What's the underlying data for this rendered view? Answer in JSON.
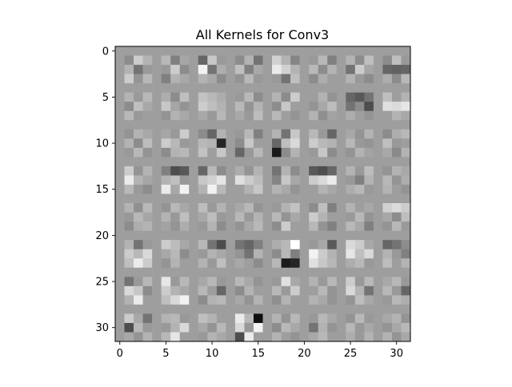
{
  "chart_data": {
    "type": "heatmap",
    "title": "All Kernels for Conv3",
    "xlabel": "",
    "ylabel": "",
    "rows": 32,
    "cols": 32,
    "xlim": [
      -0.5,
      31.5
    ],
    "ylim": [
      31.5,
      -0.5
    ],
    "x_ticks": [
      0,
      5,
      10,
      15,
      20,
      25,
      30
    ],
    "y_ticks": [
      0,
      5,
      10,
      15,
      20,
      25,
      30
    ],
    "x_tick_labels": [
      "0",
      "5",
      "10",
      "15",
      "20",
      "25",
      "30"
    ],
    "y_tick_labels": [
      "0",
      "5",
      "10",
      "15",
      "20",
      "25",
      "30"
    ],
    "colormap": "gray",
    "background_value": 0.62,
    "grid": false,
    "kernel_grid": {
      "blocks_per_side": 8,
      "block_size": 4,
      "kernel_size": 3,
      "separator": 1
    },
    "z_approx": "3x3 kernels in an 8x8 layout separated by neutral gray (~0.62) lines; values in [0,1], darker = lower, lighter = higher; individual cell values estimated visually",
    "values": [
      [
        0.62,
        0.62,
        0.62,
        0.62,
        0.62,
        0.62,
        0.62,
        0.62,
        0.62,
        0.62,
        0.62,
        0.62,
        0.62,
        0.62,
        0.62,
        0.62,
        0.62,
        0.62,
        0.62,
        0.62,
        0.62,
        0.62,
        0.62,
        0.62,
        0.62,
        0.62,
        0.62,
        0.62,
        0.62,
        0.62,
        0.62,
        0.62
      ],
      [
        0.62,
        0.55,
        0.8,
        0.7,
        0.62,
        0.72,
        0.5,
        0.65,
        0.62,
        0.4,
        0.78,
        0.6,
        0.62,
        0.55,
        0.7,
        0.45,
        0.62,
        0.82,
        0.7,
        0.52,
        0.62,
        0.6,
        0.72,
        0.5,
        0.62,
        0.7,
        0.55,
        0.75,
        0.62,
        0.55,
        0.75,
        0.6
      ],
      [
        0.62,
        0.7,
        0.45,
        0.6,
        0.62,
        0.6,
        0.8,
        0.55,
        0.62,
        0.95,
        0.45,
        0.68,
        0.62,
        0.75,
        0.5,
        0.66,
        0.62,
        0.92,
        0.82,
        0.7,
        0.62,
        0.72,
        0.55,
        0.7,
        0.62,
        0.45,
        0.8,
        0.65,
        0.62,
        0.4,
        0.38,
        0.4
      ],
      [
        0.62,
        0.8,
        0.58,
        0.72,
        0.62,
        0.5,
        0.7,
        0.66,
        0.62,
        0.7,
        0.66,
        0.55,
        0.62,
        0.58,
        0.72,
        0.6,
        0.62,
        0.6,
        0.45,
        0.75,
        0.62,
        0.55,
        0.68,
        0.62,
        0.62,
        0.7,
        0.6,
        0.55,
        0.62,
        0.68,
        0.55,
        0.72
      ],
      [
        0.62,
        0.62,
        0.62,
        0.62,
        0.62,
        0.62,
        0.62,
        0.62,
        0.62,
        0.62,
        0.62,
        0.62,
        0.62,
        0.62,
        0.62,
        0.62,
        0.62,
        0.62,
        0.62,
        0.62,
        0.62,
        0.62,
        0.62,
        0.62,
        0.62,
        0.62,
        0.62,
        0.62,
        0.62,
        0.62,
        0.62,
        0.62
      ],
      [
        0.62,
        0.7,
        0.6,
        0.72,
        0.62,
        0.68,
        0.55,
        0.75,
        0.62,
        0.76,
        0.72,
        0.68,
        0.62,
        0.6,
        0.72,
        0.55,
        0.62,
        0.7,
        0.55,
        0.8,
        0.62,
        0.62,
        0.7,
        0.58,
        0.62,
        0.4,
        0.35,
        0.45,
        0.62,
        0.75,
        0.62,
        0.7
      ],
      [
        0.62,
        0.55,
        0.75,
        0.66,
        0.62,
        0.78,
        0.65,
        0.58,
        0.62,
        0.8,
        0.75,
        0.7,
        0.62,
        0.72,
        0.58,
        0.7,
        0.62,
        0.55,
        0.78,
        0.62,
        0.62,
        0.58,
        0.66,
        0.74,
        0.62,
        0.45,
        0.55,
        0.3,
        0.62,
        0.88,
        0.86,
        0.9
      ],
      [
        0.62,
        0.72,
        0.6,
        0.62,
        0.62,
        0.58,
        0.7,
        0.66,
        0.62,
        0.66,
        0.6,
        0.72,
        0.62,
        0.66,
        0.6,
        0.74,
        0.62,
        0.72,
        0.62,
        0.58,
        0.62,
        0.7,
        0.56,
        0.64,
        0.62,
        0.68,
        0.62,
        0.58,
        0.62,
        0.62,
        0.7,
        0.66
      ],
      [
        0.62,
        0.62,
        0.62,
        0.62,
        0.62,
        0.62,
        0.62,
        0.62,
        0.62,
        0.62,
        0.62,
        0.62,
        0.62,
        0.62,
        0.62,
        0.62,
        0.62,
        0.62,
        0.62,
        0.62,
        0.62,
        0.62,
        0.62,
        0.62,
        0.62,
        0.62,
        0.62,
        0.62,
        0.62,
        0.62,
        0.62,
        0.62
      ],
      [
        0.62,
        0.58,
        0.7,
        0.66,
        0.62,
        0.65,
        0.6,
        0.8,
        0.62,
        0.55,
        0.4,
        0.7,
        0.62,
        0.6,
        0.72,
        0.5,
        0.62,
        0.7,
        0.45,
        0.78,
        0.62,
        0.72,
        0.6,
        0.4,
        0.62,
        0.66,
        0.58,
        0.7,
        0.62,
        0.55,
        0.68,
        0.72
      ],
      [
        0.62,
        0.7,
        0.55,
        0.74,
        0.62,
        0.8,
        0.72,
        0.6,
        0.62,
        0.72,
        0.7,
        0.15,
        0.62,
        0.55,
        0.78,
        0.62,
        0.62,
        0.4,
        0.75,
        0.85,
        0.62,
        0.8,
        0.72,
        0.7,
        0.62,
        0.72,
        0.6,
        0.58,
        0.62,
        0.75,
        0.6,
        0.62
      ],
      [
        0.62,
        0.6,
        0.72,
        0.58,
        0.62,
        0.55,
        0.7,
        0.72,
        0.62,
        0.76,
        0.62,
        0.78,
        0.62,
        0.4,
        0.6,
        0.72,
        0.62,
        0.1,
        0.55,
        0.7,
        0.62,
        0.6,
        0.78,
        0.55,
        0.62,
        0.58,
        0.7,
        0.64,
        0.62,
        0.66,
        0.54,
        0.7
      ],
      [
        0.62,
        0.62,
        0.62,
        0.62,
        0.62,
        0.62,
        0.62,
        0.62,
        0.62,
        0.62,
        0.62,
        0.62,
        0.62,
        0.62,
        0.62,
        0.62,
        0.62,
        0.62,
        0.62,
        0.62,
        0.62,
        0.62,
        0.62,
        0.62,
        0.62,
        0.62,
        0.62,
        0.62,
        0.62,
        0.62,
        0.62,
        0.62
      ],
      [
        0.62,
        0.8,
        0.58,
        0.7,
        0.62,
        0.5,
        0.3,
        0.35,
        0.62,
        0.4,
        0.72,
        0.55,
        0.62,
        0.68,
        0.58,
        0.7,
        0.62,
        0.45,
        0.7,
        0.55,
        0.62,
        0.35,
        0.3,
        0.4,
        0.62,
        0.7,
        0.6,
        0.74,
        0.62,
        0.58,
        0.7,
        0.66
      ],
      [
        0.62,
        0.92,
        0.7,
        0.65,
        0.62,
        0.7,
        0.75,
        0.6,
        0.62,
        0.78,
        0.82,
        0.9,
        0.62,
        0.88,
        0.8,
        0.74,
        0.62,
        0.52,
        0.78,
        0.66,
        0.62,
        0.8,
        0.85,
        0.92,
        0.62,
        0.6,
        0.5,
        0.7,
        0.62,
        0.72,
        0.58,
        0.68
      ],
      [
        0.62,
        0.72,
        0.6,
        0.55,
        0.62,
        0.92,
        0.66,
        0.95,
        0.62,
        0.7,
        0.95,
        0.72,
        0.62,
        0.62,
        0.7,
        0.78,
        0.62,
        0.7,
        0.66,
        0.58,
        0.62,
        0.62,
        0.7,
        0.66,
        0.62,
        0.68,
        0.72,
        0.6,
        0.62,
        0.7,
        0.62,
        0.58
      ],
      [
        0.62,
        0.62,
        0.62,
        0.62,
        0.62,
        0.62,
        0.62,
        0.62,
        0.62,
        0.62,
        0.62,
        0.62,
        0.62,
        0.62,
        0.62,
        0.62,
        0.62,
        0.62,
        0.62,
        0.62,
        0.62,
        0.62,
        0.62,
        0.62,
        0.62,
        0.62,
        0.62,
        0.62,
        0.62,
        0.62,
        0.62,
        0.62
      ],
      [
        0.62,
        0.7,
        0.56,
        0.72,
        0.62,
        0.58,
        0.72,
        0.66,
        0.62,
        0.74,
        0.6,
        0.7,
        0.62,
        0.66,
        0.72,
        0.58,
        0.62,
        0.6,
        0.7,
        0.76,
        0.62,
        0.55,
        0.75,
        0.5,
        0.62,
        0.7,
        0.62,
        0.66,
        0.62,
        0.82,
        0.86,
        0.8
      ],
      [
        0.62,
        0.6,
        0.72,
        0.65,
        0.62,
        0.7,
        0.6,
        0.75,
        0.62,
        0.66,
        0.74,
        0.6,
        0.62,
        0.72,
        0.6,
        0.7,
        0.62,
        0.72,
        0.58,
        0.66,
        0.62,
        0.8,
        0.7,
        0.62,
        0.62,
        0.6,
        0.72,
        0.58,
        0.62,
        0.66,
        0.55,
        0.74
      ],
      [
        0.62,
        0.55,
        0.68,
        0.7,
        0.62,
        0.64,
        0.58,
        0.68,
        0.62,
        0.6,
        0.7,
        0.55,
        0.62,
        0.58,
        0.66,
        0.72,
        0.62,
        0.55,
        0.8,
        0.62,
        0.62,
        0.72,
        0.58,
        0.5,
        0.62,
        0.72,
        0.66,
        0.5,
        0.62,
        0.58,
        0.72,
        0.6
      ],
      [
        0.62,
        0.62,
        0.62,
        0.62,
        0.62,
        0.62,
        0.62,
        0.62,
        0.62,
        0.62,
        0.62,
        0.62,
        0.62,
        0.62,
        0.62,
        0.62,
        0.62,
        0.62,
        0.62,
        0.62,
        0.62,
        0.62,
        0.62,
        0.62,
        0.62,
        0.62,
        0.62,
        0.62,
        0.62,
        0.62,
        0.62,
        0.62
      ],
      [
        0.62,
        0.7,
        0.45,
        0.6,
        0.62,
        0.8,
        0.74,
        0.66,
        0.62,
        0.72,
        0.45,
        0.3,
        0.62,
        0.45,
        0.4,
        0.5,
        0.62,
        0.68,
        0.72,
        1.0,
        0.62,
        0.6,
        0.66,
        0.35,
        0.62,
        0.85,
        0.8,
        0.66,
        0.62,
        0.4,
        0.45,
        0.55
      ],
      [
        0.62,
        0.8,
        0.72,
        0.85,
        0.62,
        0.66,
        0.72,
        0.55,
        0.62,
        0.6,
        0.7,
        0.66,
        0.62,
        0.58,
        0.45,
        0.7,
        0.62,
        0.55,
        0.72,
        0.5,
        0.62,
        0.95,
        0.8,
        0.7,
        0.62,
        0.9,
        0.75,
        0.85,
        0.62,
        0.7,
        0.6,
        0.5
      ],
      [
        0.62,
        0.75,
        0.92,
        0.8,
        0.62,
        0.58,
        0.7,
        0.62,
        0.62,
        0.7,
        0.6,
        0.75,
        0.62,
        0.66,
        0.62,
        0.55,
        0.62,
        0.72,
        0.1,
        0.15,
        0.62,
        0.88,
        0.78,
        0.72,
        0.62,
        0.68,
        0.72,
        0.6,
        0.62,
        0.74,
        0.62,
        0.7
      ],
      [
        0.62,
        0.62,
        0.62,
        0.62,
        0.62,
        0.62,
        0.62,
        0.62,
        0.62,
        0.62,
        0.62,
        0.62,
        0.62,
        0.62,
        0.62,
        0.62,
        0.62,
        0.62,
        0.62,
        0.62,
        0.62,
        0.62,
        0.62,
        0.62,
        0.62,
        0.62,
        0.62,
        0.62,
        0.62,
        0.62,
        0.62,
        0.62
      ],
      [
        0.62,
        0.45,
        0.6,
        0.72,
        0.62,
        0.9,
        0.6,
        0.72,
        0.62,
        0.66,
        0.72,
        0.6,
        0.62,
        0.72,
        0.66,
        0.58,
        0.62,
        0.6,
        0.88,
        0.66,
        0.62,
        0.7,
        0.6,
        0.72,
        0.62,
        0.8,
        0.6,
        0.72,
        0.62,
        0.66,
        0.72,
        0.6
      ],
      [
        0.62,
        0.85,
        0.78,
        0.55,
        0.62,
        0.8,
        0.7,
        0.66,
        0.62,
        0.72,
        0.62,
        0.4,
        0.62,
        0.55,
        0.7,
        0.62,
        0.62,
        0.72,
        0.6,
        0.8,
        0.62,
        0.62,
        0.72,
        0.58,
        0.62,
        0.85,
        0.7,
        0.45,
        0.62,
        0.72,
        0.6,
        0.4
      ],
      [
        0.62,
        0.7,
        0.92,
        0.62,
        0.62,
        0.75,
        0.85,
        0.95,
        0.62,
        0.55,
        0.7,
        0.72,
        0.62,
        0.66,
        0.58,
        0.7,
        0.62,
        0.56,
        0.7,
        0.62,
        0.62,
        0.7,
        0.66,
        0.58,
        0.62,
        0.58,
        0.74,
        0.66,
        0.62,
        0.6,
        0.72,
        0.68
      ],
      [
        0.62,
        0.62,
        0.62,
        0.62,
        0.62,
        0.62,
        0.62,
        0.62,
        0.62,
        0.62,
        0.62,
        0.62,
        0.62,
        0.62,
        0.62,
        0.62,
        0.62,
        0.62,
        0.62,
        0.62,
        0.62,
        0.62,
        0.62,
        0.62,
        0.62,
        0.62,
        0.62,
        0.62,
        0.62,
        0.62,
        0.62,
        0.62
      ],
      [
        0.62,
        0.8,
        0.66,
        0.45,
        0.62,
        0.7,
        0.72,
        0.6,
        0.62,
        0.75,
        0.7,
        0.62,
        0.62,
        0.92,
        0.72,
        0.05,
        0.62,
        0.7,
        0.58,
        0.72,
        0.62,
        0.6,
        0.72,
        0.66,
        0.62,
        0.58,
        0.72,
        0.6,
        0.62,
        0.66,
        0.7,
        0.58
      ],
      [
        0.62,
        0.3,
        0.72,
        0.6,
        0.62,
        0.6,
        0.7,
        0.85,
        0.62,
        0.66,
        0.58,
        0.72,
        0.62,
        0.85,
        0.6,
        0.95,
        0.62,
        0.55,
        0.72,
        0.66,
        0.62,
        0.45,
        0.7,
        0.58,
        0.62,
        0.72,
        0.6,
        0.66,
        0.62,
        0.58,
        0.66,
        0.72
      ],
      [
        0.62,
        0.66,
        0.58,
        0.7,
        0.62,
        0.72,
        0.9,
        0.62,
        0.62,
        0.6,
        0.7,
        0.66,
        0.62,
        0.3,
        0.92,
        0.62,
        0.62,
        0.7,
        0.62,
        0.58,
        0.62,
        0.66,
        0.72,
        0.62,
        0.62,
        0.68,
        0.6,
        0.7,
        0.62,
        0.7,
        0.58,
        0.66
      ]
    ]
  }
}
